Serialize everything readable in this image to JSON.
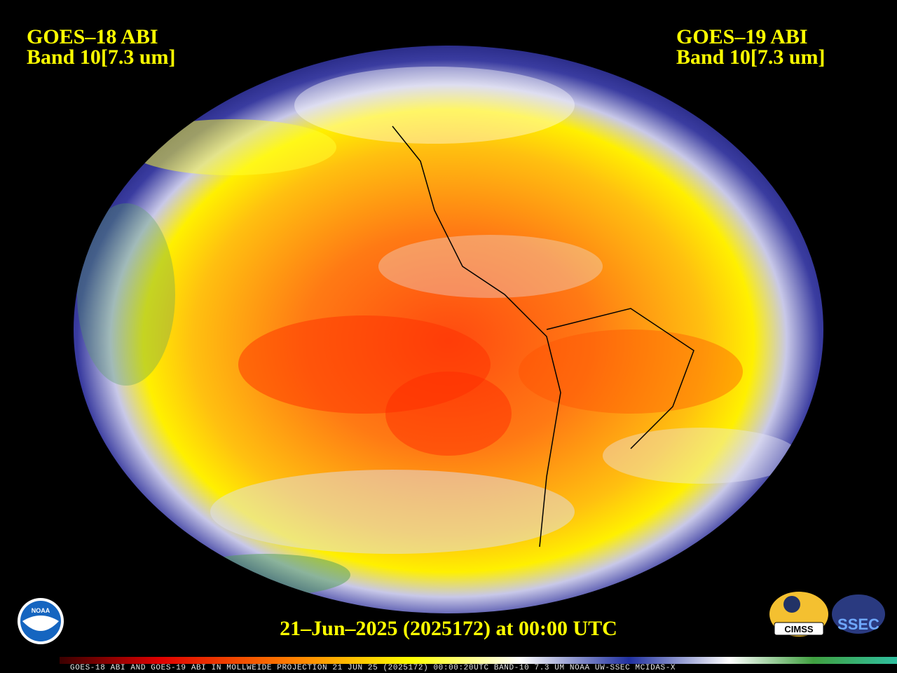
{
  "header": {
    "left": {
      "line1": "GOES–18 ABI",
      "line2": "Band 10[7.3 um]"
    },
    "right": {
      "line1": "GOES–19 ABI",
      "line2": "Band 10[7.3 um]"
    }
  },
  "timestamp": "21–Jun–2025 (2025172) at 00:00 UTC",
  "logos": {
    "noaa": "NOAA",
    "cimss": "CIMSS",
    "ssec": "SSEC"
  },
  "footer": "GOES-18 ABI AND GOES-19 ABI IN MOLLWEIDE PROJECTION 21 JUN 25 (2025172) 00:00:20UTC BAND-10 7.3 UM NOAA UW-SSEC MCIDAS-X"
}
